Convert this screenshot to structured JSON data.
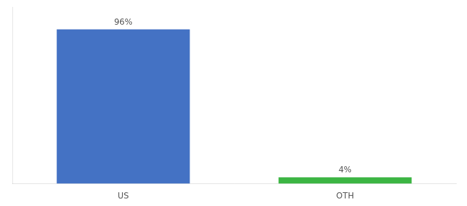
{
  "chart_data": {
    "type": "bar",
    "categories": [
      "US",
      "OTH"
    ],
    "values": [
      96,
      4
    ],
    "value_labels": [
      "96%",
      "4%"
    ],
    "colors": [
      "#4472c4",
      "#3cb543"
    ],
    "ylim": [
      0,
      110
    ],
    "data_labels": true,
    "tick_labels": "x",
    "grid": false
  }
}
